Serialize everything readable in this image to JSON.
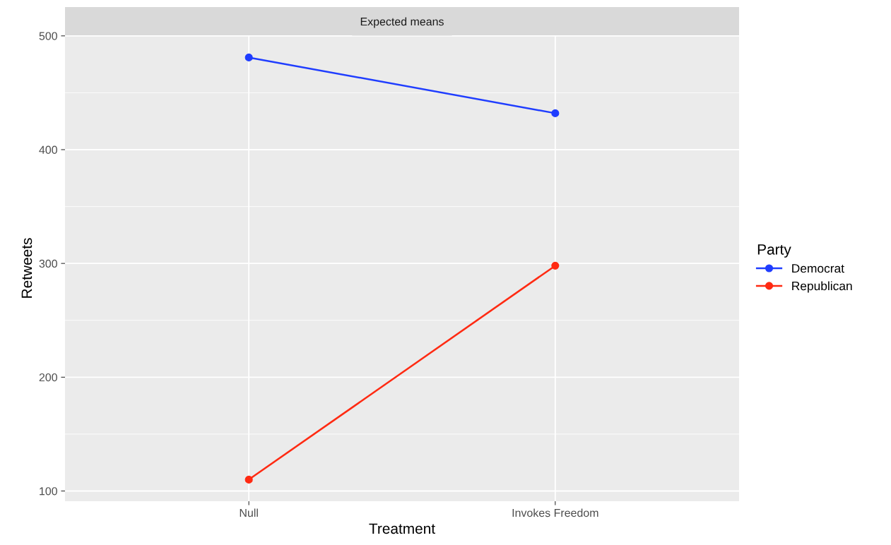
{
  "chart_data": {
    "type": "line",
    "title": "Expected means",
    "xlabel": "Treatment",
    "ylabel": "Retweets",
    "legend_title": "Party",
    "categories": [
      "Null",
      "Invokes Freedom"
    ],
    "series": [
      {
        "name": "Democrat",
        "color": "#1f3dff",
        "values": [
          481,
          432
        ]
      },
      {
        "name": "Republican",
        "color": "#ff2a12",
        "values": [
          110,
          298
        ]
      }
    ],
    "ylim": [
      91,
      500.5
    ],
    "yticks": [
      100,
      200,
      300,
      400,
      500
    ],
    "grid": true,
    "legend": "right",
    "marker": "circle",
    "line_style": "solid"
  }
}
